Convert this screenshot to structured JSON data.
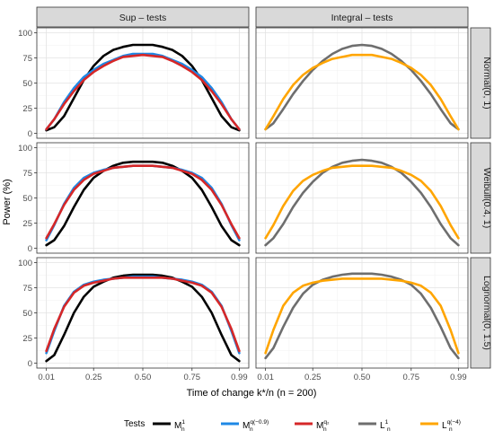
{
  "chart_data": {
    "type": "line",
    "facet_columns": [
      "Sup – tests",
      "Integral – tests"
    ],
    "facet_rows": [
      "Normal(0, 1)",
      "Weibull(0.4, 1)",
      "Lognormal(0, 1.5)"
    ],
    "xlabel": "Time of change k*/n (n = 200)",
    "ylabel": "Power (%)",
    "x_ticks": [
      "0.01",
      "0.25",
      "0.50",
      "0.75",
      "0.99"
    ],
    "y_ticks": [
      "0",
      "25",
      "50",
      "75",
      "100"
    ],
    "xlim": [
      0.01,
      0.99
    ],
    "ylim": [
      0,
      100
    ],
    "grid": true,
    "legend_title": "Tests",
    "legend_position": "bottom",
    "legend": [
      {
        "base": "M",
        "sub": "n",
        "sup": "1",
        "color": "#000000"
      },
      {
        "base": "M",
        "sub": "n",
        "sup": "q(−0.9)",
        "color": "#1e88e5"
      },
      {
        "base": "M",
        "sub": "n",
        "sup": "q₂",
        "color": "#d62728"
      },
      {
        "base": "L",
        "sub": "n",
        "sup": "1",
        "color": "#6e6e6e"
      },
      {
        "base": "L",
        "sub": "n",
        "sup": "q(−4)",
        "color": "#ffa500"
      }
    ],
    "x": [
      0.01,
      0.05,
      0.1,
      0.15,
      0.2,
      0.25,
      0.3,
      0.35,
      0.4,
      0.45,
      0.5,
      0.55,
      0.6,
      0.65,
      0.7,
      0.75,
      0.8,
      0.85,
      0.9,
      0.95,
      0.99
    ],
    "panels": [
      {
        "row": 0,
        "col": 0,
        "series": [
          {
            "legend_index": 0,
            "values": [
              3,
              6,
              17,
              35,
              53,
              67,
              77,
              83,
              86,
              88,
              88,
              88,
              86,
              83,
              77,
              67,
              53,
              35,
              17,
              6,
              3
            ]
          },
          {
            "legend_index": 1,
            "values": [
              4,
              14,
              31,
              45,
              56,
              63,
              69,
              73,
              77,
              79,
              79,
              79,
              77,
              73,
              69,
              63,
              56,
              45,
              31,
              14,
              4
            ]
          },
          {
            "legend_index": 2,
            "values": [
              4,
              14,
              29,
              42,
              53,
              61,
              67,
              72,
              76,
              77,
              78,
              77,
              76,
              72,
              67,
              61,
              53,
              42,
              29,
              14,
              4
            ]
          }
        ]
      },
      {
        "row": 0,
        "col": 1,
        "series": [
          {
            "legend_index": 3,
            "values": [
              4,
              10,
              24,
              39,
              52,
              63,
              72,
              79,
              84,
              87,
              88,
              87,
              84,
              79,
              72,
              63,
              52,
              39,
              24,
              10,
              4
            ]
          },
          {
            "legend_index": 4,
            "values": [
              4,
              17,
              34,
              48,
              58,
              65,
              70,
              74,
              76,
              78,
              78,
              78,
              76,
              74,
              70,
              65,
              58,
              48,
              34,
              17,
              4
            ]
          }
        ]
      },
      {
        "row": 1,
        "col": 0,
        "series": [
          {
            "legend_index": 0,
            "values": [
              3,
              8,
              22,
              41,
              58,
              70,
              77,
              82,
              85,
              86,
              86,
              86,
              85,
              82,
              77,
              70,
              58,
              41,
              22,
              8,
              3
            ]
          },
          {
            "legend_index": 1,
            "values": [
              8,
              23,
              44,
              60,
              70,
              75,
              78,
              80,
              81,
              82,
              82,
              82,
              81,
              80,
              78,
              75,
              70,
              60,
              44,
              23,
              8
            ]
          },
          {
            "legend_index": 2,
            "values": [
              10,
              24,
              43,
              58,
              68,
              74,
              77,
              80,
              81,
              82,
              82,
              82,
              81,
              80,
              77,
              74,
              68,
              58,
              43,
              24,
              10
            ]
          }
        ]
      },
      {
        "row": 1,
        "col": 1,
        "series": [
          {
            "legend_index": 3,
            "values": [
              3,
              10,
              24,
              41,
              55,
              66,
              75,
              81,
              85,
              87,
              88,
              87,
              85,
              81,
              75,
              66,
              55,
              41,
              24,
              10,
              3
            ]
          },
          {
            "legend_index": 4,
            "values": [
              10,
              23,
              42,
              57,
              67,
              73,
              77,
              80,
              81,
              82,
              82,
              82,
              81,
              80,
              77,
              73,
              67,
              57,
              42,
              23,
              10
            ]
          }
        ]
      },
      {
        "row": 2,
        "col": 0,
        "series": [
          {
            "legend_index": 0,
            "values": [
              2,
              8,
              28,
              50,
              66,
              76,
              81,
              85,
              87,
              88,
              88,
              88,
              87,
              85,
              81,
              76,
              66,
              50,
              28,
              8,
              2
            ]
          },
          {
            "legend_index": 1,
            "values": [
              10,
              32,
              57,
              71,
              78,
              81,
              83,
              84,
              85,
              86,
              86,
              86,
              85,
              84,
              83,
              81,
              78,
              71,
              57,
              32,
              10
            ]
          },
          {
            "legend_index": 2,
            "values": [
              12,
              34,
              56,
              70,
              77,
              80,
              82,
              84,
              85,
              85,
              85,
              85,
              85,
              84,
              82,
              80,
              77,
              70,
              56,
              34,
              12
            ]
          }
        ]
      },
      {
        "row": 2,
        "col": 1,
        "series": [
          {
            "legend_index": 3,
            "values": [
              5,
              15,
              36,
              55,
              69,
              78,
              83,
              86,
              88,
              89,
              89,
              89,
              88,
              86,
              83,
              78,
              69,
              55,
              36,
              15,
              5
            ]
          },
          {
            "legend_index": 4,
            "values": [
              10,
              33,
              57,
              70,
              77,
              80,
              82,
              83,
              84,
              84,
              84,
              84,
              84,
              83,
              82,
              80,
              77,
              70,
              57,
              33,
              10
            ]
          }
        ]
      }
    ]
  }
}
